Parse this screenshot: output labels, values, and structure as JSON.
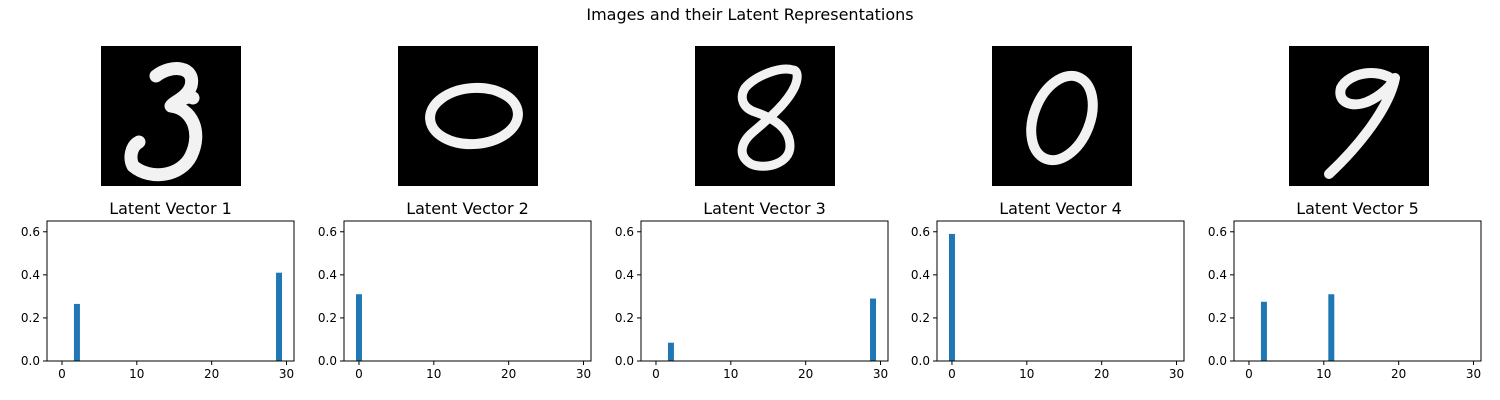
{
  "figure": {
    "suptitle": "Images and their Latent Representations"
  },
  "digits": [
    {
      "depicts": "handwritten digit 3"
    },
    {
      "depicts": "handwritten digit 0"
    },
    {
      "depicts": "handwritten digit 8"
    },
    {
      "depicts": "handwritten digit 0"
    },
    {
      "depicts": "handwritten digit 9"
    }
  ],
  "colors": {
    "bar": "#1f77b4",
    "digit_background": "#000000",
    "digit_stroke": "#f2f2f2"
  },
  "chart_data": [
    {
      "type": "bar",
      "title": "Latent Vector 1",
      "xlim": [
        -2,
        31
      ],
      "ylim": [
        0,
        0.65
      ],
      "xticks": [
        0,
        10,
        20,
        30
      ],
      "yticks": [
        "0.0",
        "0.2",
        "0.4",
        "0.6"
      ],
      "bars": [
        {
          "x": 2,
          "y": 0.265
        },
        {
          "x": 29,
          "y": 0.41
        }
      ]
    },
    {
      "type": "bar",
      "title": "Latent Vector 2",
      "xlim": [
        -2,
        31
      ],
      "ylim": [
        0,
        0.65
      ],
      "xticks": [
        0,
        10,
        20,
        30
      ],
      "yticks": [
        "0.0",
        "0.2",
        "0.4",
        "0.6"
      ],
      "bars": [
        {
          "x": 0,
          "y": 0.31
        }
      ]
    },
    {
      "type": "bar",
      "title": "Latent Vector 3",
      "xlim": [
        -2,
        31
      ],
      "ylim": [
        0,
        0.65
      ],
      "xticks": [
        0,
        10,
        20,
        30
      ],
      "yticks": [
        "0.0",
        "0.2",
        "0.4",
        "0.6"
      ],
      "bars": [
        {
          "x": 2,
          "y": 0.085
        },
        {
          "x": 29,
          "y": 0.29
        }
      ]
    },
    {
      "type": "bar",
      "title": "Latent Vector 4",
      "xlim": [
        -2,
        31
      ],
      "ylim": [
        0,
        0.65
      ],
      "xticks": [
        0,
        10,
        20,
        30
      ],
      "yticks": [
        "0.0",
        "0.2",
        "0.4",
        "0.6"
      ],
      "bars": [
        {
          "x": 0,
          "y": 0.59
        }
      ]
    },
    {
      "type": "bar",
      "title": "Latent Vector 5",
      "xlim": [
        -2,
        31
      ],
      "ylim": [
        0,
        0.65
      ],
      "xticks": [
        0,
        10,
        20,
        30
      ],
      "yticks": [
        "0.0",
        "0.2",
        "0.4",
        "0.6"
      ],
      "bars": [
        {
          "x": 2,
          "y": 0.275
        },
        {
          "x": 11,
          "y": 0.31
        }
      ]
    }
  ]
}
